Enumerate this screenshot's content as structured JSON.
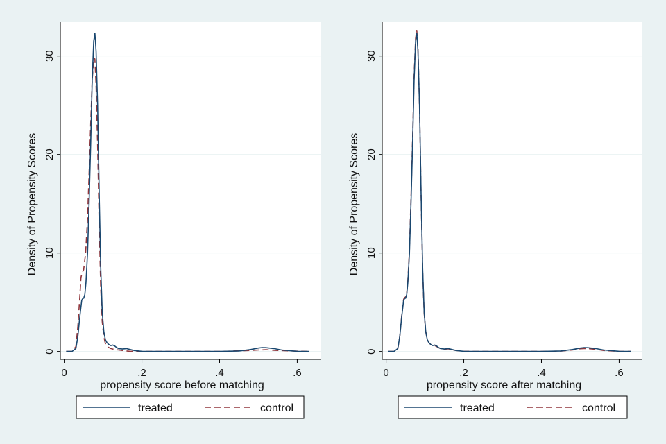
{
  "chart_data": [
    {
      "type": "line",
      "xlabel": "propensity score before matching",
      "ylabel": "Density of Propensity Scores",
      "xlim": [
        -0.01,
        0.66
      ],
      "ylim": [
        -0.8,
        33.5
      ],
      "xticks": [
        0,
        0.2,
        0.4,
        0.6
      ],
      "xtick_labels": [
        "0",
        ".2",
        ".4",
        ".6"
      ],
      "yticks": [
        0,
        10,
        20,
        30
      ],
      "ytick_labels": [
        "0",
        "10",
        "20",
        "30"
      ],
      "grid": true,
      "legend_position": "bottom",
      "series": [
        {
          "name": "treated",
          "color": "#1a476f",
          "dash": "solid",
          "x": [
            0.005,
            0.02,
            0.03,
            0.035,
            0.04,
            0.045,
            0.048,
            0.05,
            0.053,
            0.056,
            0.06,
            0.064,
            0.068,
            0.072,
            0.076,
            0.079,
            0.082,
            0.086,
            0.09,
            0.094,
            0.098,
            0.102,
            0.106,
            0.11,
            0.115,
            0.12,
            0.125,
            0.13,
            0.135,
            0.14,
            0.15,
            0.16,
            0.17,
            0.18,
            0.2,
            0.25,
            0.3,
            0.4,
            0.45,
            0.48,
            0.5,
            0.51,
            0.52,
            0.54,
            0.56,
            0.6,
            0.63
          ],
          "y": [
            0,
            0,
            0.3,
            1.5,
            3.5,
            5.2,
            5.4,
            5.4,
            5.8,
            7,
            10,
            15,
            21,
            27.5,
            31.5,
            32.3,
            30.5,
            25,
            16,
            8.5,
            4,
            2,
            1.2,
            0.9,
            0.7,
            0.6,
            0.65,
            0.55,
            0.4,
            0.3,
            0.25,
            0.3,
            0.2,
            0.1,
            0.02,
            0,
            0,
            0,
            0.05,
            0.2,
            0.35,
            0.4,
            0.38,
            0.3,
            0.15,
            0.02,
            0
          ]
        },
        {
          "name": "control",
          "color": "#90353b",
          "dash": "dashed",
          "x": [
            0.005,
            0.02,
            0.03,
            0.035,
            0.04,
            0.043,
            0.046,
            0.05,
            0.055,
            0.06,
            0.064,
            0.068,
            0.072,
            0.076,
            0.079,
            0.082,
            0.086,
            0.09,
            0.094,
            0.098,
            0.102,
            0.106,
            0.11,
            0.12,
            0.13,
            0.14,
            0.15,
            0.16,
            0.17,
            0.2,
            0.3,
            0.4,
            0.48,
            0.5,
            0.52,
            0.54,
            0.6,
            0.63
          ],
          "y": [
            0,
            0,
            0.5,
            2.5,
            5.5,
            7.5,
            8,
            8.3,
            10,
            13.5,
            18,
            23,
            27.5,
            29.8,
            29.7,
            27,
            21,
            13,
            6.5,
            3,
            1.5,
            0.8,
            0.5,
            0.3,
            0.2,
            0.15,
            0.1,
            0.05,
            0.02,
            0,
            0,
            0,
            0.1,
            0.15,
            0.18,
            0.12,
            0.03,
            0
          ]
        }
      ]
    },
    {
      "type": "line",
      "xlabel": "propensity score after matching",
      "ylabel": "Density of Propensity Scores",
      "xlim": [
        -0.01,
        0.66
      ],
      "ylim": [
        -0.8,
        33.5
      ],
      "xticks": [
        0,
        0.2,
        0.4,
        0.6
      ],
      "xtick_labels": [
        "0",
        ".2",
        ".4",
        ".6"
      ],
      "yticks": [
        0,
        10,
        20,
        30
      ],
      "ytick_labels": [
        "0",
        "10",
        "20",
        "30"
      ],
      "grid": true,
      "legend_position": "bottom",
      "series": [
        {
          "name": "treated",
          "color": "#1a476f",
          "dash": "solid",
          "x": [
            0.005,
            0.02,
            0.03,
            0.035,
            0.04,
            0.045,
            0.048,
            0.05,
            0.053,
            0.056,
            0.06,
            0.064,
            0.068,
            0.072,
            0.076,
            0.079,
            0.082,
            0.086,
            0.09,
            0.094,
            0.098,
            0.102,
            0.106,
            0.11,
            0.115,
            0.12,
            0.125,
            0.13,
            0.135,
            0.14,
            0.15,
            0.16,
            0.17,
            0.18,
            0.2,
            0.25,
            0.3,
            0.4,
            0.45,
            0.48,
            0.5,
            0.51,
            0.52,
            0.54,
            0.56,
            0.6,
            0.63
          ],
          "y": [
            0,
            0,
            0.3,
            1.5,
            3.5,
            5.2,
            5.4,
            5.4,
            5.8,
            7,
            10,
            15,
            21,
            27.5,
            31.5,
            32.3,
            30.5,
            25,
            16,
            8.5,
            4,
            2,
            1.2,
            0.9,
            0.7,
            0.6,
            0.65,
            0.55,
            0.4,
            0.3,
            0.25,
            0.3,
            0.2,
            0.1,
            0.02,
            0,
            0,
            0,
            0.05,
            0.2,
            0.35,
            0.4,
            0.38,
            0.3,
            0.15,
            0.02,
            0
          ]
        },
        {
          "name": "control",
          "color": "#90353b",
          "dash": "dashed",
          "x": [
            0.005,
            0.02,
            0.03,
            0.035,
            0.04,
            0.045,
            0.048,
            0.05,
            0.053,
            0.056,
            0.06,
            0.064,
            0.068,
            0.072,
            0.076,
            0.079,
            0.082,
            0.086,
            0.09,
            0.094,
            0.098,
            0.102,
            0.106,
            0.11,
            0.115,
            0.12,
            0.125,
            0.13,
            0.135,
            0.14,
            0.15,
            0.16,
            0.17,
            0.18,
            0.2,
            0.25,
            0.3,
            0.4,
            0.45,
            0.48,
            0.5,
            0.51,
            0.52,
            0.54,
            0.56,
            0.6,
            0.63
          ],
          "y": [
            0,
            0,
            0.3,
            1.5,
            3.6,
            5.3,
            5.5,
            5.5,
            5.9,
            7.2,
            10.3,
            15.5,
            21.5,
            28,
            31.8,
            32.6,
            30.7,
            25,
            15.8,
            8.3,
            3.9,
            2,
            1.2,
            0.9,
            0.7,
            0.6,
            0.6,
            0.5,
            0.38,
            0.3,
            0.22,
            0.27,
            0.18,
            0.1,
            0.02,
            0,
            0,
            0,
            0.04,
            0.15,
            0.28,
            0.3,
            0.3,
            0.22,
            0.1,
            0.02,
            0
          ]
        }
      ]
    }
  ]
}
